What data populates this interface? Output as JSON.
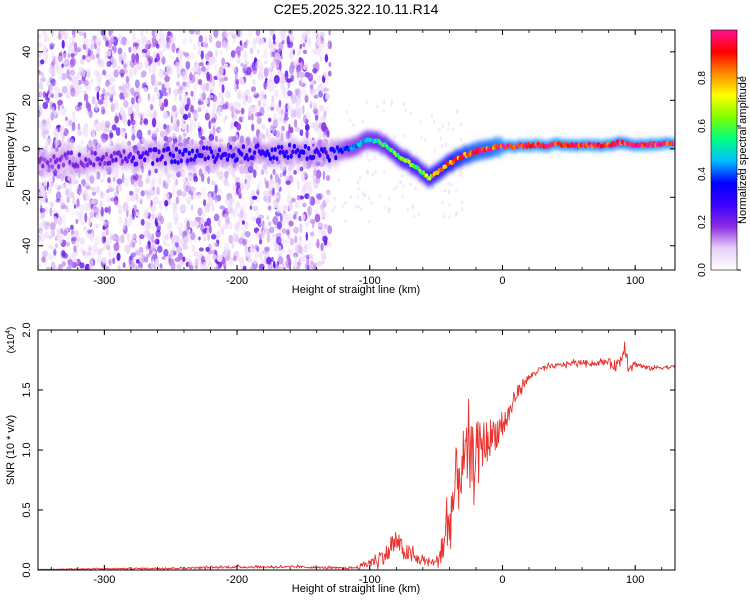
{
  "title": "C2E5.2025.322.10.11.R14",
  "colors": {
    "snr_line": "#e8322e",
    "background": "#ffffff",
    "axes": "#000000"
  },
  "chart_data": [
    {
      "type": "heatmap",
      "name": "spectrogram",
      "xlabel": "Height of straight line (km)",
      "ylabel": "Frequency (Hz)",
      "xlim": [
        -350,
        130
      ],
      "ylim": [
        -50,
        49
      ],
      "xticks": [
        -300,
        -200,
        -100,
        0,
        100
      ],
      "yticks": [
        -40,
        -20,
        0,
        20,
        40
      ],
      "colorbar": {
        "label": "Normalized spectral amplitude",
        "range": [
          0,
          1
        ],
        "ticks": [
          "0.0",
          "0.2",
          "0.4",
          "0.6",
          "0.8"
        ],
        "tick_values": [
          0,
          0.2,
          0.4,
          0.6,
          0.8
        ],
        "colormap": [
          "#ffffff",
          "#e8d0f8",
          "#8a2be2",
          "#3a00ff",
          "#0000ff",
          "#00bfff",
          "#00ff7f",
          "#7fff00",
          "#ffff00",
          "#ff8c00",
          "#ff0000",
          "#ff1493"
        ]
      },
      "ridge": {
        "x": [
          -340,
          -300,
          -250,
          -200,
          -160,
          -130,
          -110,
          -100,
          -90,
          -80,
          -70,
          -60,
          -55,
          -50,
          -40,
          -30,
          -20,
          -10,
          0,
          20,
          50,
          80,
          90,
          100,
          130
        ],
        "y": [
          -5,
          -4,
          -3,
          -2,
          -1,
          -2,
          1,
          4,
          2,
          -2,
          -6,
          -10,
          -12,
          -10,
          -6,
          -3,
          -1,
          0,
          1,
          1.5,
          1.5,
          1.5,
          3,
          1.5,
          2
        ],
        "amplitude": [
          0.18,
          0.2,
          0.3,
          0.3,
          0.3,
          0.3,
          0.45,
          0.5,
          0.55,
          0.6,
          0.65,
          0.6,
          0.7,
          0.75,
          0.8,
          0.85,
          0.9,
          0.9,
          0.95,
          0.95,
          0.95,
          0.95,
          0.9,
          0.95,
          0.95
        ]
      },
      "noise_region": {
        "x": [
          -350,
          -130
        ],
        "y": [
          -50,
          49
        ],
        "amplitude": [
          0.05,
          0.25
        ]
      }
    },
    {
      "type": "line",
      "name": "snr",
      "xlabel": "Height of straight line (km)",
      "ylabel": "SNR (10 * v/v)",
      "scale_label": "(x10",
      "scale_exponent": "4",
      "scale_suffix": ")",
      "xlim": [
        -350,
        130
      ],
      "ylim": [
        0,
        20000
      ],
      "xticks": [
        -300,
        -200,
        -100,
        0,
        100
      ],
      "yticks": [
        0,
        5000,
        10000,
        15000,
        20000
      ],
      "ytick_labels": [
        "0.0",
        "0.5",
        "1.0",
        "1.5",
        "2.0"
      ],
      "series": [
        {
          "name": "SNR",
          "x": [
            -350,
            -300,
            -250,
            -200,
            -150,
            -120,
            -110,
            -100,
            -95,
            -90,
            -85,
            -80,
            -75,
            -70,
            -65,
            -60,
            -55,
            -50,
            -45,
            -40,
            -35,
            -30,
            -25,
            -20,
            -15,
            -10,
            -5,
            0,
            5,
            10,
            15,
            20,
            25,
            30,
            40,
            50,
            60,
            70,
            80,
            85,
            90,
            92,
            95,
            100,
            110,
            120,
            130
          ],
          "y": [
            50,
            100,
            150,
            250,
            250,
            150,
            200,
            600,
            900,
            1200,
            1500,
            2500,
            1600,
            1300,
            900,
            800,
            700,
            600,
            2000,
            4000,
            7000,
            9000,
            9500,
            10000,
            10500,
            11000,
            11500,
            12000,
            13000,
            14500,
            15500,
            16000,
            16500,
            16800,
            17000,
            17200,
            17300,
            17200,
            17400,
            17000,
            17600,
            19000,
            17000,
            17200,
            16800,
            16900,
            16900
          ],
          "noise": [
            30,
            60,
            80,
            120,
            120,
            100,
            150,
            500,
            700,
            900,
            1000,
            1200,
            1000,
            900,
            700,
            500,
            400,
            400,
            2500,
            3500,
            4000,
            3500,
            3000,
            3000,
            2500,
            2000,
            1800,
            1500,
            1200,
            800,
            500,
            400,
            300,
            300,
            250,
            250,
            250,
            250,
            300,
            600,
            800,
            1000,
            600,
            300,
            250,
            250,
            200
          ]
        }
      ]
    }
  ]
}
